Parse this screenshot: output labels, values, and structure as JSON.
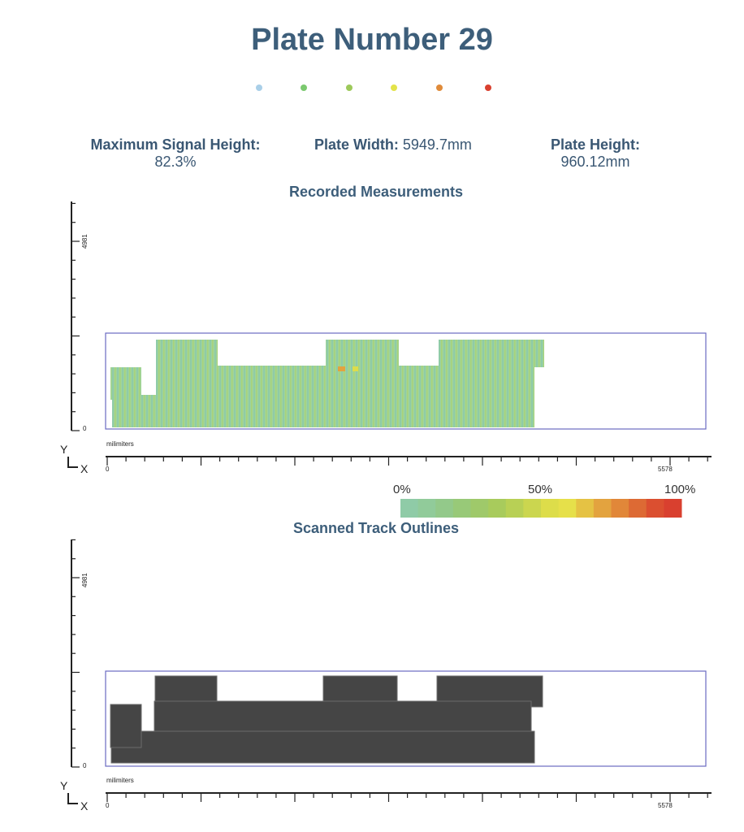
{
  "title": "Plate Number 29",
  "dot_colors": [
    "#a9cfe8",
    "#7bc96f",
    "#9dc95a",
    "#e3e34a",
    "#e08b3a",
    "#d9402f"
  ],
  "stats": {
    "max_signal": {
      "label": "Maximum Signal Height:",
      "value": "82.3%"
    },
    "plate_width": {
      "label": "Plate Width:",
      "value": "5949.7mm"
    },
    "plate_height": {
      "label": "Plate Height:",
      "value": "960.12mm"
    }
  },
  "measurements": {
    "title": "Recorded Measurements",
    "y_tick_label": "4981",
    "y_zero_label": "0",
    "unit_label": "milimiters",
    "x_zero_label": "0",
    "x_max_label": "5578",
    "axis_y": "Y",
    "axis_x": "X"
  },
  "legend": {
    "labels": [
      "0%",
      "50%",
      "100%"
    ],
    "colors": [
      "#8fcba7",
      "#91cb9a",
      "#93c98a",
      "#98c978",
      "#9fc96a",
      "#a8cb5c",
      "#b8d055",
      "#cbd64f",
      "#dddd4a",
      "#e6e04a",
      "#e5c244",
      "#e3a33f",
      "#e18739",
      "#dd6a34",
      "#db4f30",
      "#d9402f"
    ]
  },
  "outlines": {
    "title": "Scanned Track Outlines",
    "y_tick_label": "4981",
    "y_zero_label": "0",
    "unit_label": "milimiters",
    "x_zero_label": "0",
    "x_max_label": "5578",
    "axis_y": "Y",
    "axis_x": "X"
  }
}
